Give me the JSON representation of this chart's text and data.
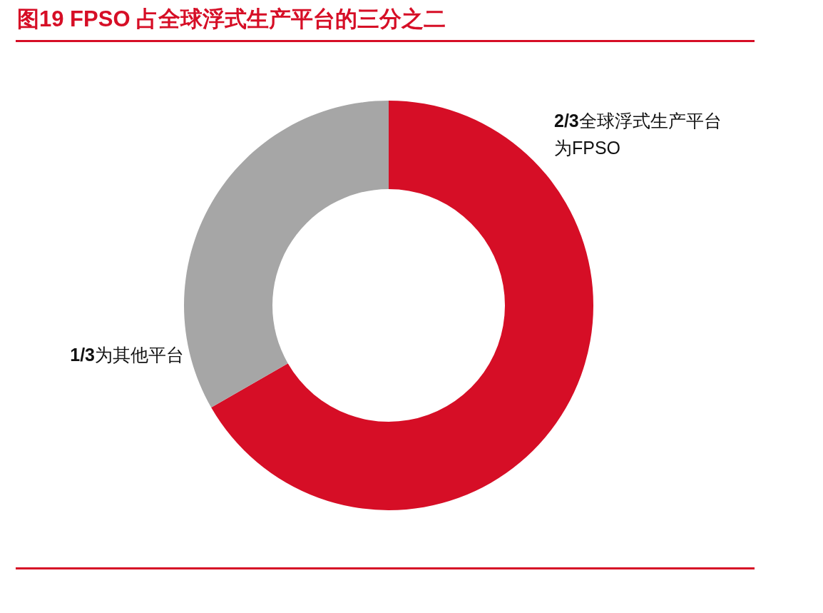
{
  "chart_data": {
    "type": "donut",
    "title": "图19  FPSO 占全球浮式生产平台的三分之二",
    "categories": [
      "2/3全球浮式生产平台为FPSO",
      "1/3为其他平台"
    ],
    "values": [
      66.7,
      33.3
    ],
    "colors": [
      "#d60e26",
      "#a6a6a6"
    ]
  }
}
